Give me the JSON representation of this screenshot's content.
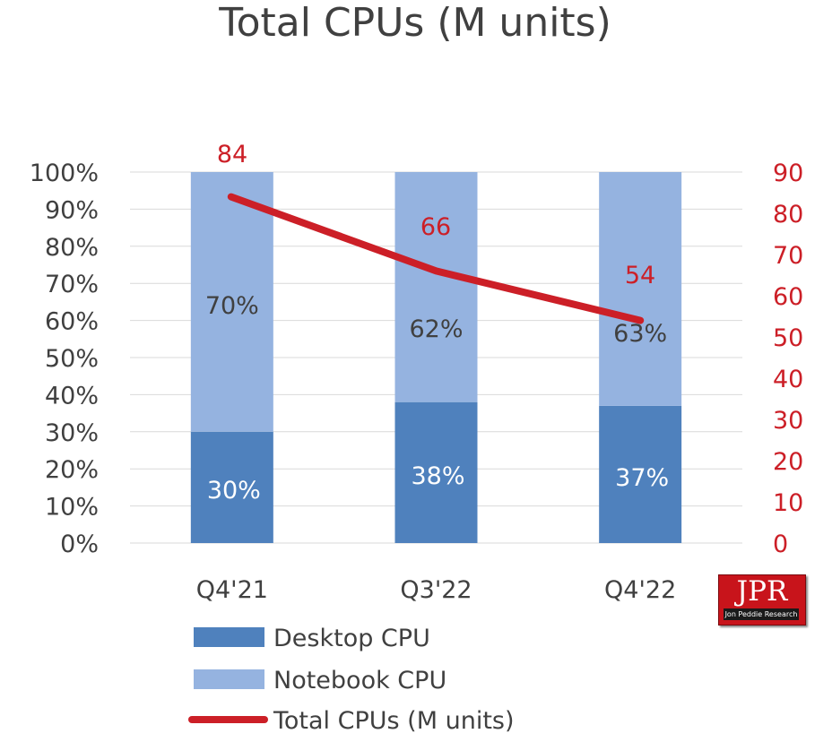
{
  "chart_data": {
    "type": "bar",
    "stacked": true,
    "title": "Total CPUs (M units)",
    "categories": [
      "Q4'21",
      "Q3'22",
      "Q4'22"
    ],
    "series": [
      {
        "name": "Desktop CPU",
        "kind": "bar",
        "axis": "left",
        "values": [
          30,
          38,
          37
        ],
        "labels": [
          "30%",
          "38%",
          "37%"
        ],
        "color": "#4f81bd"
      },
      {
        "name": "Notebook CPU",
        "kind": "bar",
        "axis": "left",
        "values": [
          70,
          62,
          63
        ],
        "labels": [
          "70%",
          "62%",
          "63%"
        ],
        "color": "#95b3e0"
      },
      {
        "name": "Total CPUs (M units)",
        "kind": "line",
        "axis": "right",
        "values": [
          84,
          66,
          54
        ],
        "labels": [
          "84",
          "66",
          "54"
        ],
        "color": "#cc1f27"
      }
    ],
    "y_left": {
      "ylim": [
        0,
        100
      ],
      "ticks": [
        "0%",
        "10%",
        "20%",
        "30%",
        "40%",
        "50%",
        "60%",
        "70%",
        "80%",
        "90%",
        "100%"
      ]
    },
    "y_right": {
      "ylim": [
        0,
        90
      ],
      "ticks": [
        "0",
        "10",
        "20",
        "30",
        "40",
        "50",
        "60",
        "70",
        "80",
        "90"
      ],
      "color": "#cc1f27"
    },
    "grid": true,
    "legend": "bottom"
  },
  "logo": {
    "text": "JPR",
    "tagline": "Jon Peddie Research"
  }
}
